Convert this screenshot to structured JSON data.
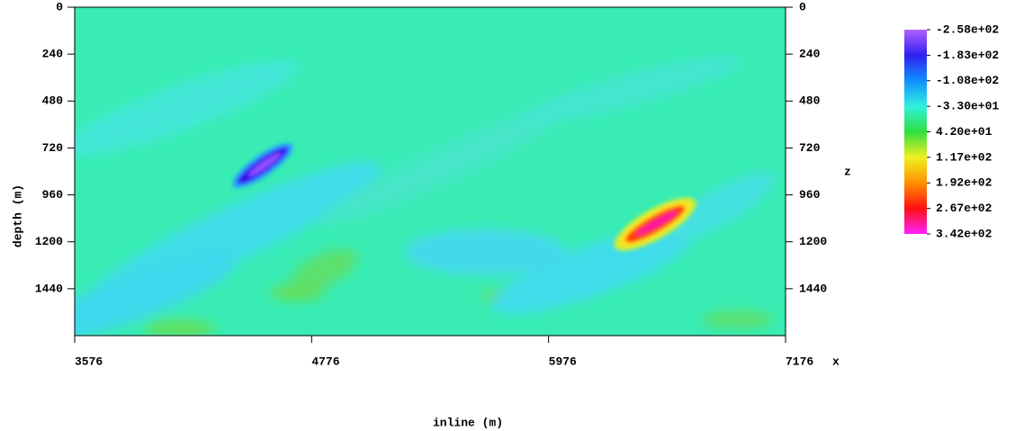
{
  "chart_data": {
    "type": "heatmap",
    "xlabel": "inline (m)",
    "ylabel": "depth (m)",
    "x_axis_name": "x",
    "z_axis_name": "z",
    "xlim": [
      3576,
      7176
    ],
    "xticks": [
      3576,
      4776,
      5976,
      7176
    ],
    "ylim": [
      0,
      1680
    ],
    "yticks": [
      0,
      240,
      480,
      720,
      960,
      1200,
      1440
    ],
    "colorbar": {
      "lim": [
        -258,
        342
      ],
      "ticks": [
        {
          "value": -258,
          "label": "-2.58e+02"
        },
        {
          "value": -183,
          "label": "-1.83e+02"
        },
        {
          "value": -108,
          "label": "-1.08e+02"
        },
        {
          "value": -33,
          "label": "-3.30e+01"
        },
        {
          "value": 42,
          "label": "4.20e+01"
        },
        {
          "value": 117,
          "label": "1.17e+02"
        },
        {
          "value": 192,
          "label": "1.92e+02"
        },
        {
          "value": 267,
          "label": "2.67e+02"
        },
        {
          "value": 342,
          "label": "3.42e+02"
        }
      ],
      "colors": [
        "#b060ff",
        "#3020f0",
        "#1090ff",
        "#30f0e0",
        "#30e040",
        "#f0f020",
        "#ff9000",
        "#ff1010",
        "#ff20ff"
      ]
    }
  }
}
